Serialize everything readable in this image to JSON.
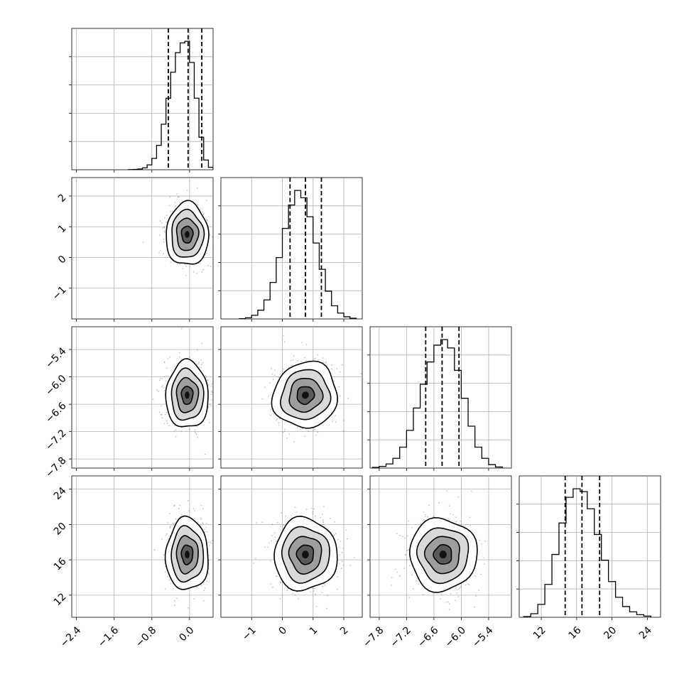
{
  "chart_data": {
    "type": "corner",
    "grid": true,
    "parameters": [
      {
        "range": [
          -2.5,
          0.5
        ],
        "ticks": [
          -2.4,
          -1.6,
          -0.8,
          0.0
        ],
        "tick_labels": [
          "−2.4",
          "−1.6",
          "−0.8",
          "0.0"
        ],
        "quantiles": [
          -0.45,
          -0.03,
          0.26
        ],
        "mean": -0.05,
        "sd": 0.22,
        "histogram": {
          "bins": [
            -1.3,
            -1.2,
            -1.1,
            -1.0,
            -0.9,
            -0.8,
            -0.7,
            -0.6,
            -0.5,
            -0.4,
            -0.3,
            -0.2,
            -0.1,
            0.0,
            0.1,
            0.2,
            0.3,
            0.4,
            0.5
          ],
          "counts": [
            1,
            2,
            5,
            12,
            30,
            70,
            150,
            280,
            440,
            600,
            720,
            780,
            790,
            660,
            440,
            200,
            60,
            15
          ]
        }
      },
      {
        "range": [
          -2.0,
          2.6
        ],
        "ticks": [
          -1,
          0,
          1,
          2
        ],
        "tick_labels": [
          "−1",
          "0",
          "1",
          "2"
        ],
        "y_ticks": [
          -1,
          0,
          1,
          2
        ],
        "y_tick_labels": [
          "−1",
          "0",
          "1",
          "2"
        ],
        "quantiles": [
          0.25,
          0.75,
          1.27
        ],
        "mean": 0.75,
        "sd": 0.5,
        "histogram": {
          "bins": [
            -1.4,
            -1.2,
            -1.0,
            -0.8,
            -0.6,
            -0.4,
            -0.2,
            0.0,
            0.2,
            0.4,
            0.6,
            0.8,
            1.0,
            1.2,
            1.4,
            1.6,
            1.8,
            2.0,
            2.2,
            2.4
          ],
          "counts": [
            2,
            8,
            25,
            60,
            130,
            250,
            420,
            620,
            780,
            880,
            830,
            700,
            520,
            340,
            190,
            90,
            40,
            15,
            5
          ]
        }
      },
      {
        "range": [
          -8.0,
          -4.9
        ],
        "ticks": [
          -7.8,
          -7.2,
          -6.6,
          -6.0,
          -5.4
        ],
        "tick_labels": [
          "−7.8",
          "−7.2",
          "−6.6",
          "−6.0",
          "−5.4"
        ],
        "y_ticks": [
          -7.8,
          -7.2,
          -6.6,
          -6.0,
          -5.4
        ],
        "y_tick_labels": [
          "−7.8",
          "−7.2",
          "−6.6",
          "−6.0",
          "−5.4"
        ],
        "quantiles": [
          -6.78,
          -6.42,
          -6.05
        ],
        "mean": -6.4,
        "sd": 0.36,
        "histogram": {
          "bins": [
            -7.95,
            -7.8,
            -7.65,
            -7.5,
            -7.35,
            -7.2,
            -7.05,
            -6.9,
            -6.75,
            -6.6,
            -6.45,
            -6.3,
            -6.15,
            -6.0,
            -5.85,
            -5.7,
            -5.55,
            -5.4,
            -5.25,
            -5.1
          ],
          "counts": [
            5,
            12,
            30,
            70,
            150,
            270,
            430,
            600,
            760,
            880,
            920,
            860,
            700,
            500,
            300,
            150,
            70,
            25,
            8
          ]
        }
      },
      {
        "range": [
          9.5,
          25.5
        ],
        "ticks": [
          12,
          16,
          20,
          24
        ],
        "tick_labels": [
          "12",
          "16",
          "20",
          "24"
        ],
        "y_ticks": [
          12,
          16,
          20,
          24
        ],
        "y_tick_labels": [
          "12",
          "16",
          "20",
          "24"
        ],
        "quantiles": [
          14.7,
          16.6,
          18.6
        ],
        "mean": 16.6,
        "sd": 2.0,
        "histogram": {
          "bins": [
            10.0,
            10.8,
            11.6,
            12.4,
            13.2,
            14.0,
            14.8,
            15.6,
            16.4,
            17.2,
            18.0,
            18.8,
            19.6,
            20.4,
            21.2,
            22.0,
            22.8,
            23.6,
            24.4
          ],
          "counts": [
            5,
            25,
            90,
            230,
            440,
            660,
            840,
            900,
            880,
            760,
            580,
            400,
            250,
            140,
            75,
            38,
            18,
            8
          ]
        }
      }
    ]
  }
}
